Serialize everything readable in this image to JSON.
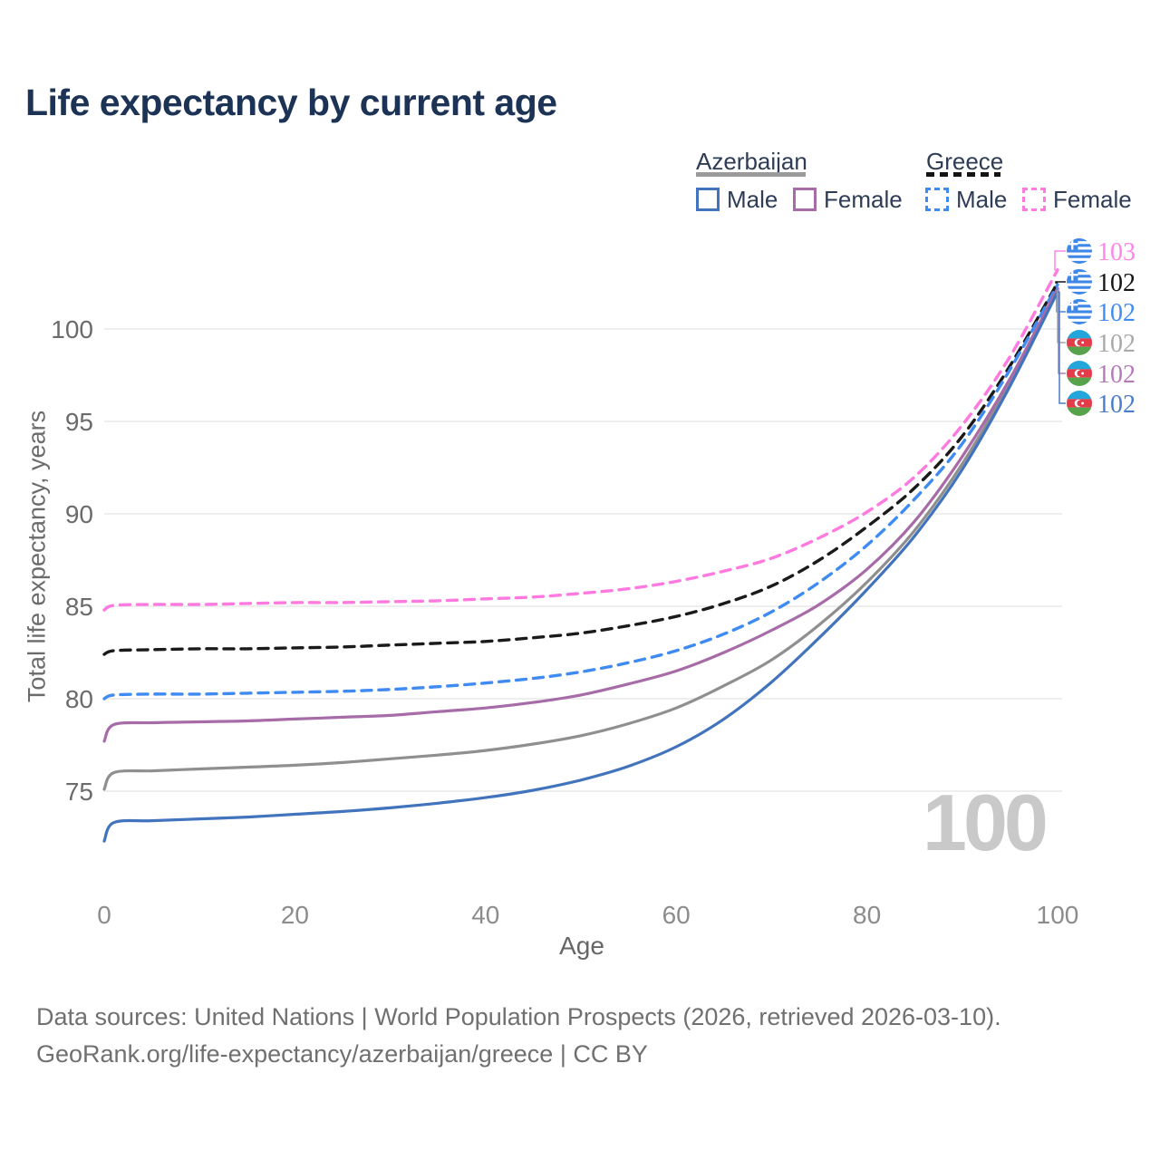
{
  "title": "Life expectancy by current age",
  "watermark": "100",
  "legend": {
    "groups": [
      {
        "country": "Azerbaijan",
        "line_style": "solid",
        "underline_color": "#9b9b9b",
        "items": [
          {
            "label": "Male",
            "color": "#4273bd",
            "dashed": false
          },
          {
            "label": "Female",
            "color": "#a76ca7",
            "dashed": false
          }
        ]
      },
      {
        "country": "Greece",
        "line_style": "dashed",
        "underline_color": "#141414",
        "items": [
          {
            "label": "Male",
            "color": "#3f8bf2",
            "dashed": true
          },
          {
            "label": "Female",
            "color": "#ff7ae0",
            "dashed": true
          }
        ]
      }
    ]
  },
  "chart_data": {
    "type": "line",
    "title": "Life expectancy by current age",
    "xlabel": "Age",
    "ylabel": "Total life expectancy, years",
    "xlim": [
      0,
      100
    ],
    "ylim": [
      72,
      104
    ],
    "x_ticks": [
      0,
      20,
      40,
      60,
      80,
      100
    ],
    "y_ticks": [
      75,
      80,
      85,
      90,
      95,
      100
    ],
    "grid": "horizontal",
    "legend_position": "top-right",
    "x": [
      0,
      1,
      5,
      10,
      15,
      20,
      25,
      30,
      35,
      40,
      45,
      50,
      55,
      60,
      65,
      70,
      75,
      80,
      85,
      90,
      95,
      100
    ],
    "series": [
      {
        "name": "Greece Female",
        "country": "Greece",
        "sex": "Female",
        "flag": "greece",
        "color": "#ff7ae0",
        "dashed": true,
        "end_label": "103",
        "label_color": "#ff85e8",
        "values": [
          84.8,
          85.05,
          85.1,
          85.1,
          85.15,
          85.2,
          85.2,
          85.25,
          85.3,
          85.4,
          85.5,
          85.7,
          85.95,
          86.35,
          86.9,
          87.6,
          88.7,
          90.1,
          92.0,
          94.8,
          98.5,
          103.2
        ]
      },
      {
        "name": "Greece (both sexes)",
        "country": "Greece",
        "sex": "Both",
        "flag": "greece",
        "color": "#1a1a1a",
        "dashed": true,
        "end_label": "102",
        "label_color": "#141414",
        "values": [
          82.4,
          82.6,
          82.65,
          82.7,
          82.7,
          82.75,
          82.8,
          82.9,
          83.0,
          83.1,
          83.3,
          83.55,
          83.95,
          84.45,
          85.15,
          86.1,
          87.5,
          89.3,
          91.4,
          94.2,
          98.0,
          102.5
        ]
      },
      {
        "name": "Greece Male",
        "country": "Greece",
        "sex": "Male",
        "flag": "greece",
        "color": "#3f8bf2",
        "dashed": true,
        "end_label": "102",
        "label_color": "#418cf0",
        "values": [
          80.0,
          80.2,
          80.25,
          80.25,
          80.3,
          80.35,
          80.4,
          80.5,
          80.65,
          80.85,
          81.1,
          81.45,
          81.95,
          82.6,
          83.5,
          84.7,
          86.3,
          88.3,
          90.8,
          93.8,
          97.8,
          102.4
        ]
      },
      {
        "name": "Azerbaijan (both sexes)",
        "country": "Azerbaijan",
        "sex": "Both",
        "flag": "azerbaijan",
        "color": "#8f8f8f",
        "dashed": false,
        "end_label": "102",
        "label_color": "#a9a9a9",
        "values": [
          75.1,
          76.0,
          76.1,
          76.2,
          76.3,
          76.4,
          76.55,
          76.75,
          76.95,
          77.2,
          77.55,
          78.0,
          78.65,
          79.5,
          80.7,
          82.1,
          84.0,
          86.3,
          89.1,
          92.7,
          97.1,
          102.1
        ]
      },
      {
        "name": "Azerbaijan Female",
        "country": "Azerbaijan",
        "sex": "Female",
        "flag": "azerbaijan",
        "color": "#a76ca7",
        "dashed": false,
        "end_label": "102",
        "label_color": "#b57ab8",
        "values": [
          77.7,
          78.6,
          78.7,
          78.75,
          78.8,
          78.9,
          79.0,
          79.1,
          79.3,
          79.5,
          79.8,
          80.2,
          80.8,
          81.5,
          82.5,
          83.7,
          85.1,
          87.0,
          89.6,
          93.1,
          97.3,
          102.2
        ]
      },
      {
        "name": "Azerbaijan Male",
        "country": "Azerbaijan",
        "sex": "Male",
        "flag": "azerbaijan",
        "color": "#4273bd",
        "dashed": false,
        "end_label": "102",
        "label_color": "#4a7cc8",
        "values": [
          72.3,
          73.3,
          73.4,
          73.5,
          73.6,
          73.75,
          73.9,
          74.1,
          74.35,
          74.65,
          75.05,
          75.6,
          76.35,
          77.4,
          78.9,
          80.9,
          83.3,
          85.9,
          88.8,
          92.4,
          96.9,
          102.0
        ]
      }
    ]
  },
  "footer": {
    "line1": "Data sources: United Nations | World Population Prospects (2026, retrieved 2026-03-10).",
    "line2": "GeoRank.org/life-expectancy/azerbaijan/greece | CC BY"
  }
}
